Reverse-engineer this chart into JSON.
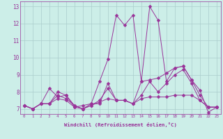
{
  "xlabel": "Windchill (Refroidissement éolien,°C)",
  "bg_color": "#cceee8",
  "grid_color": "#aacccc",
  "line_color": "#993399",
  "markersize": 2.5,
  "xlim": [
    -0.5,
    23.5
  ],
  "ylim": [
    6.7,
    13.3
  ],
  "xticks": [
    0,
    1,
    2,
    3,
    4,
    5,
    6,
    7,
    8,
    9,
    10,
    11,
    12,
    13,
    14,
    15,
    16,
    17,
    18,
    19,
    20,
    21,
    22,
    23
  ],
  "yticks": [
    7,
    8,
    9,
    10,
    11,
    12,
    13
  ],
  "lines": [
    [
      7.2,
      7.0,
      7.3,
      8.2,
      7.7,
      7.8,
      7.1,
      7.2,
      7.3,
      8.6,
      9.9,
      12.5,
      11.9,
      12.5,
      8.6,
      13.0,
      12.2,
      8.6,
      9.4,
      9.5,
      8.7,
      8.1,
      6.8,
      7.1
    ],
    [
      7.2,
      7.0,
      7.3,
      7.3,
      8.0,
      7.8,
      7.2,
      7.0,
      7.3,
      7.3,
      8.5,
      7.5,
      7.5,
      7.3,
      8.6,
      8.7,
      8.8,
      9.1,
      9.4,
      9.5,
      8.7,
      7.8,
      7.1,
      7.1
    ],
    [
      7.2,
      7.0,
      7.3,
      7.3,
      7.8,
      7.6,
      7.2,
      7.0,
      7.2,
      7.5,
      8.2,
      7.5,
      7.5,
      7.3,
      7.8,
      8.6,
      8.0,
      8.5,
      9.0,
      9.3,
      8.5,
      7.5,
      7.1,
      7.1
    ],
    [
      7.2,
      7.0,
      7.3,
      7.3,
      7.6,
      7.5,
      7.1,
      7.0,
      7.2,
      7.4,
      7.6,
      7.5,
      7.5,
      7.3,
      7.6,
      7.7,
      7.7,
      7.7,
      7.8,
      7.8,
      7.8,
      7.5,
      7.1,
      7.1
    ]
  ]
}
